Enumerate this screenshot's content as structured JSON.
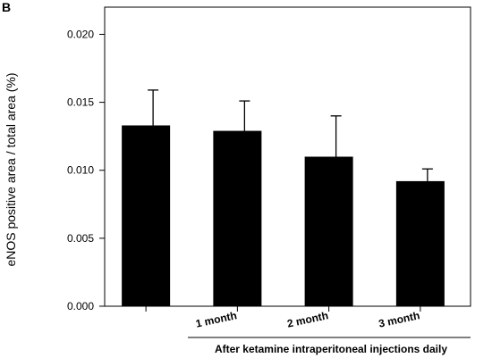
{
  "panel_label": "B",
  "chart_data": {
    "type": "bar",
    "categories": [
      "",
      "1 month",
      "2 month",
      "3 month"
    ],
    "values": [
      0.0133,
      0.0129,
      0.011,
      0.0092
    ],
    "error_bars": [
      0.0026,
      0.0022,
      0.003,
      0.0009
    ],
    "ylabel": "eNOS positive area / total area (%)",
    "xlabel": "After ketamine intraperitoneal injections daily",
    "ylim": [
      0,
      0.022
    ],
    "yticks": [
      "0.000",
      "0.005",
      "0.010",
      "0.015",
      "0.020"
    ],
    "grid": false,
    "bar_color": "#000000"
  }
}
